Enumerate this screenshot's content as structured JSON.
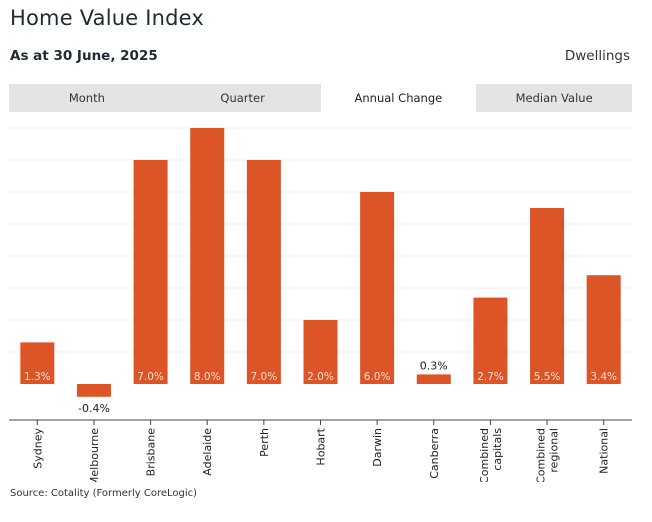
{
  "header": {
    "title": "Home Value Index",
    "subtitle": "As at 30 June, 2025",
    "type_label": "Dwellings"
  },
  "tabs": [
    {
      "label": "Month",
      "active": false
    },
    {
      "label": "Quarter",
      "active": false
    },
    {
      "label": "Annual Change",
      "active": true
    },
    {
      "label": "Median Value",
      "active": false
    }
  ],
  "colors": {
    "bar": "#dd5426",
    "grid": "#ececec",
    "axis": "#444444"
  },
  "chart_data": {
    "type": "bar",
    "title": "Home Value Index",
    "xlabel": "",
    "ylabel": "",
    "categories": [
      [
        "Sydney"
      ],
      [
        "Melbourne"
      ],
      [
        "Brisbane"
      ],
      [
        "Adelaide"
      ],
      [
        "Perth"
      ],
      [
        "Hobart"
      ],
      [
        "Darwin"
      ],
      [
        "Canberra"
      ],
      [
        "Combined",
        "capitals"
      ],
      [
        "Combined",
        "regional"
      ],
      [
        "National"
      ]
    ],
    "values": [
      1.3,
      -0.4,
      7.0,
      8.0,
      7.0,
      2.0,
      6.0,
      0.3,
      2.7,
      5.5,
      3.4
    ],
    "labels": [
      "1.3%",
      "-0.4%",
      "7.0%",
      "8.0%",
      "7.0%",
      "2.0%",
      "6.0%",
      "0.3%",
      "2.7%",
      "5.5%",
      "3.4%"
    ],
    "ylim": [
      -1,
      8
    ],
    "grid": true,
    "legend": "none"
  },
  "footer": {
    "source": "Source: Cotality (Formerly CoreLogic)"
  }
}
